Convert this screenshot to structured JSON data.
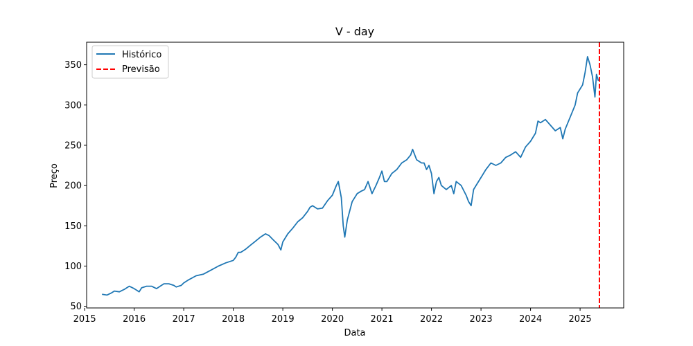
{
  "chart_data": {
    "type": "line",
    "title": "V - day",
    "xlabel": "Data",
    "ylabel": "Preço",
    "xlim": [
      2015.04,
      2025.88
    ],
    "ylim": [
      48,
      378
    ],
    "grid": false,
    "legend_position": "top-left",
    "x_ticks": [
      2015,
      2016,
      2017,
      2018,
      2019,
      2020,
      2021,
      2022,
      2023,
      2024,
      2025
    ],
    "y_ticks": [
      50,
      100,
      150,
      200,
      250,
      300,
      350
    ],
    "series": [
      {
        "name": "Histórico",
        "color": "#1f77b4",
        "style": "solid",
        "x": [
          2015.35,
          2015.45,
          2015.55,
          2015.6,
          2015.7,
          2015.8,
          2015.9,
          2016.0,
          2016.05,
          2016.1,
          2016.15,
          2016.25,
          2016.35,
          2016.45,
          2016.55,
          2016.6,
          2016.7,
          2016.8,
          2016.85,
          2016.95,
          2017.0,
          2017.1,
          2017.25,
          2017.4,
          2017.55,
          2017.7,
          2017.85,
          2018.0,
          2018.05,
          2018.1,
          2018.15,
          2018.25,
          2018.35,
          2018.45,
          2018.55,
          2018.65,
          2018.72,
          2018.8,
          2018.9,
          2018.96,
          2019.0,
          2019.1,
          2019.2,
          2019.3,
          2019.4,
          2019.5,
          2019.55,
          2019.6,
          2019.7,
          2019.8,
          2019.9,
          2020.0,
          2020.08,
          2020.12,
          2020.18,
          2020.22,
          2020.25,
          2020.3,
          2020.4,
          2020.5,
          2020.58,
          2020.65,
          2020.72,
          2020.8,
          2020.88,
          2020.95,
          2021.0,
          2021.05,
          2021.1,
          2021.2,
          2021.3,
          2021.4,
          2021.5,
          2021.58,
          2021.62,
          2021.7,
          2021.8,
          2021.85,
          2021.9,
          2021.95,
          2022.0,
          2022.05,
          2022.1,
          2022.15,
          2022.2,
          2022.3,
          2022.4,
          2022.45,
          2022.5,
          2022.6,
          2022.7,
          2022.75,
          2022.8,
          2022.85,
          2022.9,
          2023.0,
          2023.1,
          2023.2,
          2023.3,
          2023.4,
          2023.5,
          2023.6,
          2023.7,
          2023.8,
          2023.9,
          2024.0,
          2024.1,
          2024.15,
          2024.2,
          2024.3,
          2024.4,
          2024.5,
          2024.6,
          2024.65,
          2024.7,
          2024.8,
          2024.9,
          2024.95,
          2025.0,
          2025.05,
          2025.1,
          2025.15,
          2025.2,
          2025.25,
          2025.3,
          2025.33,
          2025.37
        ],
        "values": [
          65,
          64,
          67,
          69,
          68,
          71,
          75,
          72,
          70,
          68,
          73,
          75,
          75,
          72,
          76,
          78,
          78,
          76,
          74,
          76,
          79,
          83,
          88,
          90,
          95,
          100,
          104,
          107,
          111,
          117,
          117,
          121,
          126,
          131,
          136,
          140,
          138,
          133,
          127,
          120,
          130,
          140,
          147,
          155,
          160,
          168,
          173,
          175,
          171,
          172,
          181,
          188,
          200,
          205,
          185,
          150,
          136,
          157,
          180,
          190,
          193,
          195,
          205,
          190,
          200,
          210,
          218,
          205,
          205,
          215,
          220,
          228,
          232,
          238,
          245,
          232,
          228,
          228,
          220,
          225,
          215,
          190,
          205,
          210,
          200,
          195,
          200,
          190,
          205,
          200,
          188,
          180,
          175,
          195,
          200,
          210,
          220,
          228,
          225,
          228,
          235,
          238,
          242,
          235,
          248,
          255,
          265,
          280,
          278,
          282,
          275,
          268,
          272,
          258,
          270,
          285,
          300,
          315,
          320,
          325,
          340,
          360,
          350,
          335,
          310,
          338,
          330
        ]
      },
      {
        "name": "Previsão",
        "color": "#ff0000",
        "style": "dashed",
        "x_vline": 2025.39
      }
    ]
  }
}
